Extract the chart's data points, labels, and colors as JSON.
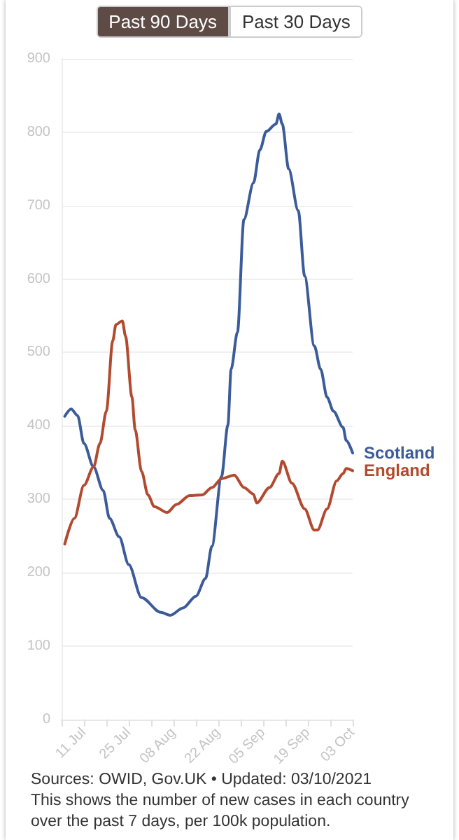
{
  "chart_data": {
    "type": "line",
    "annotations": [
      "Past 90 Days",
      "Past 30 Days",
      "Sources: OWID, Gov.UK • Updated: 03/10/2021",
      "This shows the number of new cases in each country over the past 7 days, per 100k population."
    ],
    "xlim": [
      "2021-07-04",
      "2021-10-03"
    ],
    "xticks": [
      {
        "value": "2021-07-04",
        "label": null
      },
      {
        "value": "2021-07-11",
        "label": "11 Jul"
      },
      {
        "value": "2021-07-18",
        "label": null
      },
      {
        "value": "2021-07-25",
        "label": "25 Jul"
      },
      {
        "value": "2021-08-01",
        "label": null
      },
      {
        "value": "2021-08-08",
        "label": "08 Aug"
      },
      {
        "value": "2021-08-15",
        "label": null
      },
      {
        "value": "2021-08-22",
        "label": "22 Aug"
      },
      {
        "value": "2021-08-29",
        "label": null
      },
      {
        "value": "2021-09-05",
        "label": "05 Sep"
      },
      {
        "value": "2021-09-12",
        "label": null
      },
      {
        "value": "2021-09-19",
        "label": "19 Sep"
      },
      {
        "value": "2021-09-26",
        "label": null
      },
      {
        "value": "2021-10-03",
        "label": "03 Oct"
      }
    ],
    "ylim": [
      0,
      900
    ],
    "yticks": [
      0,
      100,
      200,
      300,
      400,
      500,
      600,
      700,
      800,
      900
    ],
    "grid": "y",
    "marker": "none",
    "line_style": "solid",
    "series": [
      {
        "name": "Scotland",
        "color": "#3b5b9a",
        "x": [
          "2021-07-05",
          "2021-07-07",
          "2021-07-09",
          "2021-07-11",
          "2021-07-14",
          "2021-07-17",
          "2021-07-19",
          "2021-07-22",
          "2021-07-25",
          "2021-07-29",
          "2021-08-04",
          "2021-08-07",
          "2021-08-11",
          "2021-08-15",
          "2021-08-18",
          "2021-08-20",
          "2021-08-23",
          "2021-08-25",
          "2021-08-26",
          "2021-08-28",
          "2021-08-30",
          "2021-09-02",
          "2021-09-04",
          "2021-09-06",
          "2021-09-09",
          "2021-09-10",
          "2021-09-11",
          "2021-09-13",
          "2021-09-16",
          "2021-09-18",
          "2021-09-21",
          "2021-09-23",
          "2021-09-25",
          "2021-09-27",
          "2021-09-30",
          "2021-10-01",
          "2021-10-03"
        ],
        "values": [
          413,
          423,
          414,
          376,
          344,
          312,
          274,
          249,
          211,
          166,
          146,
          142,
          152,
          168,
          192,
          236,
          331,
          401,
          477,
          528,
          681,
          731,
          776,
          801,
          811,
          825,
          811,
          750,
          693,
          604,
          509,
          477,
          439,
          420,
          398,
          380,
          363
        ]
      },
      {
        "name": "England",
        "color": "#b3492f",
        "x": [
          "2021-07-05",
          "2021-07-08",
          "2021-07-11",
          "2021-07-14",
          "2021-07-16",
          "2021-07-18",
          "2021-07-20",
          "2021-07-21",
          "2021-07-23",
          "2021-07-24",
          "2021-07-26",
          "2021-07-27",
          "2021-07-29",
          "2021-07-31",
          "2021-08-02",
          "2021-08-06",
          "2021-08-09",
          "2021-08-13",
          "2021-08-17",
          "2021-08-20",
          "2021-08-23",
          "2021-08-27",
          "2021-08-30",
          "2021-09-02",
          "2021-09-03",
          "2021-09-07",
          "2021-09-10",
          "2021-09-11",
          "2021-09-14",
          "2021-09-18",
          "2021-09-21",
          "2021-09-22",
          "2021-09-25",
          "2021-09-28",
          "2021-09-30",
          "2021-10-01",
          "2021-10-03"
        ],
        "values": [
          239,
          274,
          319,
          344,
          376,
          420,
          516,
          538,
          543,
          522,
          439,
          395,
          338,
          306,
          290,
          282,
          293,
          305,
          306,
          316,
          328,
          333,
          316,
          307,
          295,
          316,
          335,
          352,
          322,
          287,
          258,
          258,
          287,
          325,
          335,
          342,
          339
        ]
      }
    ]
  }
}
